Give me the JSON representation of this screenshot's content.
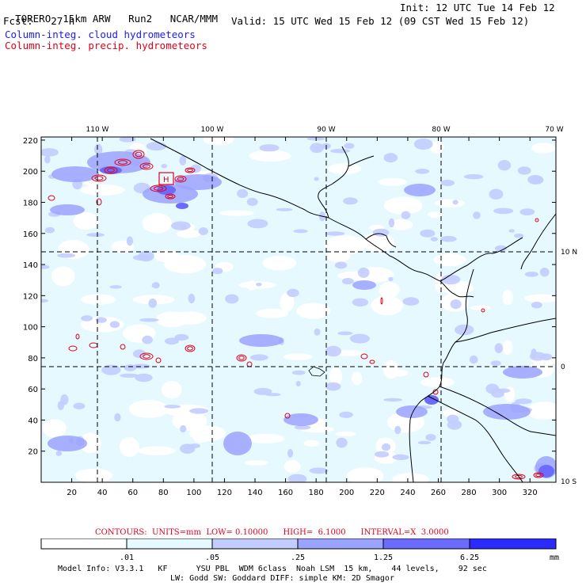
{
  "header": {
    "model": "TORERO",
    "resolution": "15km ARW",
    "run": "Run2",
    "org": "NCAR/MMM",
    "init": "Init: 12 UTC Tue 14 Feb 12",
    "fcst_label": "Fcst:",
    "fcst_value": "27 h",
    "valid": "Valid: 15 UTC Wed 15 Feb 12 (09 CST Wed 15 Feb 12)",
    "field_1": "Column-integ. cloud hydrometeors",
    "field_2": "Column-integ. precip. hydrometeors"
  },
  "colors": {
    "cloud_text": "#1a1aff",
    "precip_text": "#e0001a",
    "shade_1": "#e6f9ff",
    "shade_2": "#c2ccff",
    "shade_3": "#9aa3ff",
    "shade_4": "#6b6bff",
    "shade_5": "#2b2bff",
    "contour": "#e0001a"
  },
  "map": {
    "top_lon_labels": [
      "110 W",
      "100 W",
      "90 W",
      "80 W",
      "70 W"
    ],
    "right_lat_labels": [
      "10 N",
      "0",
      "10 S"
    ],
    "y_ticks": [
      "220",
      "200",
      "180",
      "160",
      "140",
      "120",
      "100",
      "80",
      "60",
      "40",
      "20"
    ],
    "x_ticks": [
      "20",
      "40",
      "60",
      "80",
      "100",
      "120",
      "140",
      "160",
      "180",
      "200",
      "220",
      "240",
      "260",
      "280",
      "300",
      "320"
    ],
    "high_marker": "H"
  },
  "footer": {
    "contours": "CONTOURS:  UNITS=mm  LOW= 0.10000      HIGH=  6.1000      INTERVAL=X  3.0000",
    "scale_labels": [
      ".01",
      ".05",
      ".25",
      "1.25",
      "6.25"
    ],
    "scale_unit": "mm",
    "model_info_1": "Model Info: V3.3.1   KF      YSU PBL  WDM 6class  Noah LSM  15 km,    44 levels,    92 sec",
    "model_info_2": "LW: Godd SW: Goddard DIFF: simple KM: 2D Smagor"
  }
}
